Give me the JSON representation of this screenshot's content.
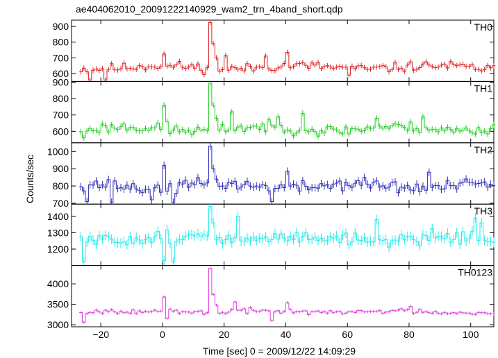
{
  "chart_data": {
    "type": "line",
    "title": "ae404062010_20091222140929_wam2_trn_4band_short.qdp",
    "xlabel": "Time [sec] 0 = 2009/12/22 14:09:29",
    "ylabel": "Counts/sec",
    "xlim": [
      -29.5,
      107.5
    ],
    "x_ticks": [
      -20,
      0,
      20,
      40,
      60,
      80,
      100
    ],
    "x_tick_labels": [
      "−20",
      "0",
      "20",
      "40",
      "60",
      "80",
      "100"
    ],
    "bin_width": 1.0,
    "x_start": -26.5,
    "x_end": 107.5,
    "grid": false,
    "panels": [
      {
        "name": "TH0",
        "color": "#e02020",
        "ylim": [
          550,
          940
        ],
        "y_ticks": [
          600,
          700,
          800,
          900
        ],
        "y_tick_labels": [
          "600",
          "700",
          "800",
          "900"
        ],
        "baseline": 640,
        "noise": 22,
        "error": 17,
        "seed": 11,
        "features": [
          {
            "x": 0.0,
            "y": 725
          },
          {
            "x": 1.0,
            "y": 648
          },
          {
            "x": 15.0,
            "y": 925
          },
          {
            "x": 16.0,
            "y": 790
          },
          {
            "x": 17.0,
            "y": 700
          },
          {
            "x": 20.0,
            "y": 715
          },
          {
            "x": 33.0,
            "y": 712
          },
          {
            "x": 40.0,
            "y": 735
          },
          {
            "x": -24.0,
            "y": 560
          },
          {
            "x": -19.0,
            "y": 560
          },
          {
            "x": 60.0,
            "y": 590
          }
        ]
      },
      {
        "name": "TH1",
        "color": "#22cc22",
        "ylim": [
          530,
          905
        ],
        "y_ticks": [
          600,
          700,
          800,
          900
        ],
        "y_tick_labels": [
          "600",
          "700",
          "800",
          "900"
        ],
        "baseline": 615,
        "noise": 24,
        "error": 18,
        "seed": 23,
        "features": [
          {
            "x": 0.0,
            "y": 760
          },
          {
            "x": 1.0,
            "y": 660
          },
          {
            "x": 15.0,
            "y": 895
          },
          {
            "x": 16.0,
            "y": 760
          },
          {
            "x": 17.0,
            "y": 680
          },
          {
            "x": 22.0,
            "y": 720
          },
          {
            "x": 37.0,
            "y": 690
          },
          {
            "x": 45.0,
            "y": 710
          },
          {
            "x": 69.0,
            "y": 680
          },
          {
            "x": 84.0,
            "y": 690
          },
          {
            "x": -26.0,
            "y": 560
          }
        ]
      },
      {
        "name": "TH2",
        "color": "#2a2ab8",
        "ylim": [
          695,
          1050
        ],
        "y_ticks": [
          700,
          800,
          900,
          1000
        ],
        "y_tick_labels": [
          "700",
          "800",
          "900",
          "1000"
        ],
        "baseline": 800,
        "noise": 26,
        "error": 22,
        "seed": 37,
        "features": [
          {
            "x": 0.0,
            "y": 920
          },
          {
            "x": 1.0,
            "y": 770
          },
          {
            "x": 15.0,
            "y": 1030
          },
          {
            "x": 16.0,
            "y": 900
          },
          {
            "x": -25.0,
            "y": 710
          },
          {
            "x": -17.0,
            "y": 705
          },
          {
            "x": -4.0,
            "y": 720
          },
          {
            "x": 3.0,
            "y": 705
          },
          {
            "x": 40.0,
            "y": 885
          },
          {
            "x": 35.0,
            "y": 710
          },
          {
            "x": 86.0,
            "y": 880
          }
        ]
      },
      {
        "name": "TH3",
        "color": "#22eaea",
        "ylim": [
          1100,
          1475
        ],
        "y_ticks": [
          1200,
          1300,
          1400
        ],
        "y_tick_labels": [
          "1200",
          "1300",
          "1400"
        ],
        "baseline": 1265,
        "noise": 28,
        "error": 30,
        "seed": 51,
        "features": [
          {
            "x": 15.0,
            "y": 1460
          },
          {
            "x": 16.0,
            "y": 1360
          },
          {
            "x": -26.0,
            "y": 1120
          },
          {
            "x": 0.0,
            "y": 1130
          },
          {
            "x": 3.0,
            "y": 1120
          },
          {
            "x": 24.0,
            "y": 1400
          },
          {
            "x": 69.0,
            "y": 1380
          },
          {
            "x": 101.0,
            "y": 1390
          },
          {
            "x": 103.0,
            "y": 1360
          }
        ]
      },
      {
        "name": "TH0123",
        "color": "#e040e0",
        "ylim": [
          2950,
          4450
        ],
        "y_ticks": [
          3000,
          3500,
          4000
        ],
        "y_tick_labels": [
          "3000",
          "3500",
          "4000"
        ],
        "baseline": 3320,
        "noise": 45,
        "error": 35,
        "seed": 67,
        "features": [
          {
            "x": 0.0,
            "y": 3680
          },
          {
            "x": 1.0,
            "y": 3150
          },
          {
            "x": 15.0,
            "y": 4380
          },
          {
            "x": 16.0,
            "y": 3740
          },
          {
            "x": 17.0,
            "y": 3480
          },
          {
            "x": 23.0,
            "y": 3560
          },
          {
            "x": 40.0,
            "y": 3540
          },
          {
            "x": -26.0,
            "y": 3060
          },
          {
            "x": 35.0,
            "y": 3100
          },
          {
            "x": 80.0,
            "y": 3450
          }
        ]
      }
    ]
  }
}
